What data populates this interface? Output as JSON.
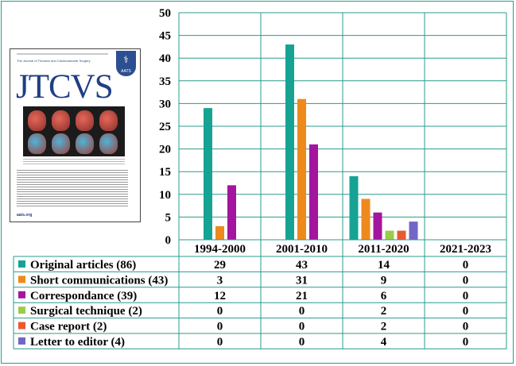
{
  "cover": {
    "title": "JTCVS",
    "subtitle": "The Journal of Thoracic and Cardiovascular Surgery",
    "badge": "AATS",
    "website": "aats.org"
  },
  "chart_data": {
    "type": "bar",
    "categories": [
      "1994-2000",
      "2001-2010",
      "2011-2020",
      "2021-2023"
    ],
    "ylim": [
      0,
      50
    ],
    "yticks": [
      0,
      5,
      10,
      15,
      20,
      25,
      30,
      35,
      40,
      45,
      50
    ],
    "grid": true,
    "series": [
      {
        "name": "Original articles (86)",
        "color": "#16a394",
        "values": [
          29,
          43,
          14,
          0
        ]
      },
      {
        "name": "Short communications (43)",
        "color": "#ee8a1c",
        "values": [
          3,
          31,
          9,
          0
        ]
      },
      {
        "name": "Correspondance (39)",
        "color": "#a3159e",
        "values": [
          12,
          21,
          6,
          0
        ]
      },
      {
        "name": "Surgical technique (2)",
        "color": "#9ccb49",
        "values": [
          0,
          0,
          2,
          0
        ]
      },
      {
        "name": "Case report  (2)",
        "color": "#e95a30",
        "values": [
          0,
          0,
          2,
          0
        ]
      },
      {
        "name": "Letter to editor (4)",
        "color": "#7266c8",
        "values": [
          0,
          0,
          4,
          0
        ]
      }
    ]
  }
}
